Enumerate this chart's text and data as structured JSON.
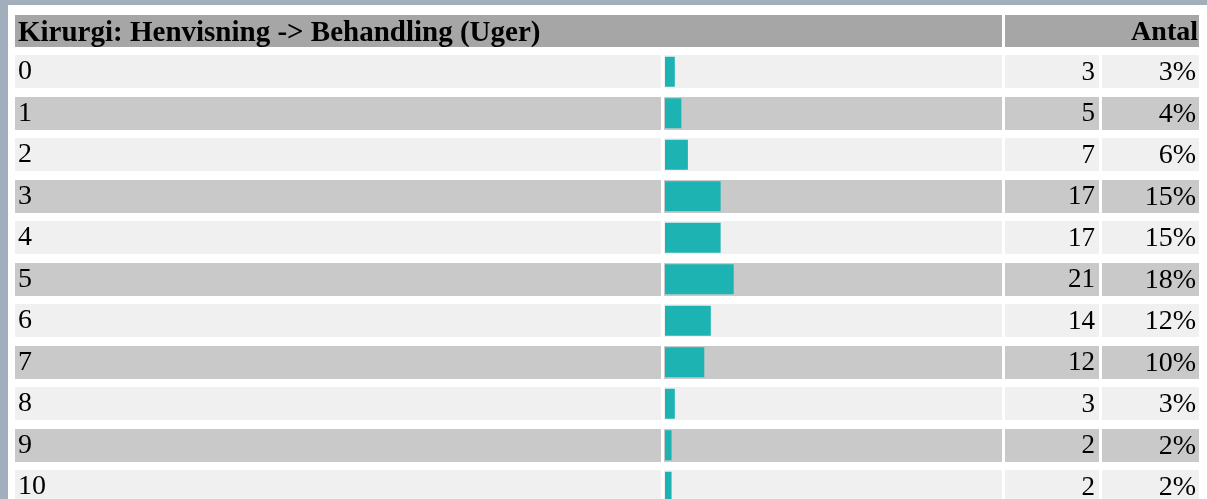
{
  "chart_data": {
    "type": "bar",
    "orientation": "horizontal",
    "title": "Kirurgi: Henvisning -> Behandling (Uger)",
    "categories": [
      "0",
      "1",
      "2",
      "3",
      "4",
      "5",
      "6",
      "7",
      "8",
      "9",
      "10"
    ],
    "values": [
      3,
      5,
      7,
      17,
      17,
      21,
      14,
      12,
      3,
      2,
      2
    ],
    "color": "#1db3b3",
    "data_labels": true,
    "annotations": [
      "Antal",
      "3%",
      "4%",
      "6%",
      "15%",
      "15%",
      "18%",
      "12%",
      "10%",
      "3%",
      "2%",
      "2%"
    ]
  }
}
